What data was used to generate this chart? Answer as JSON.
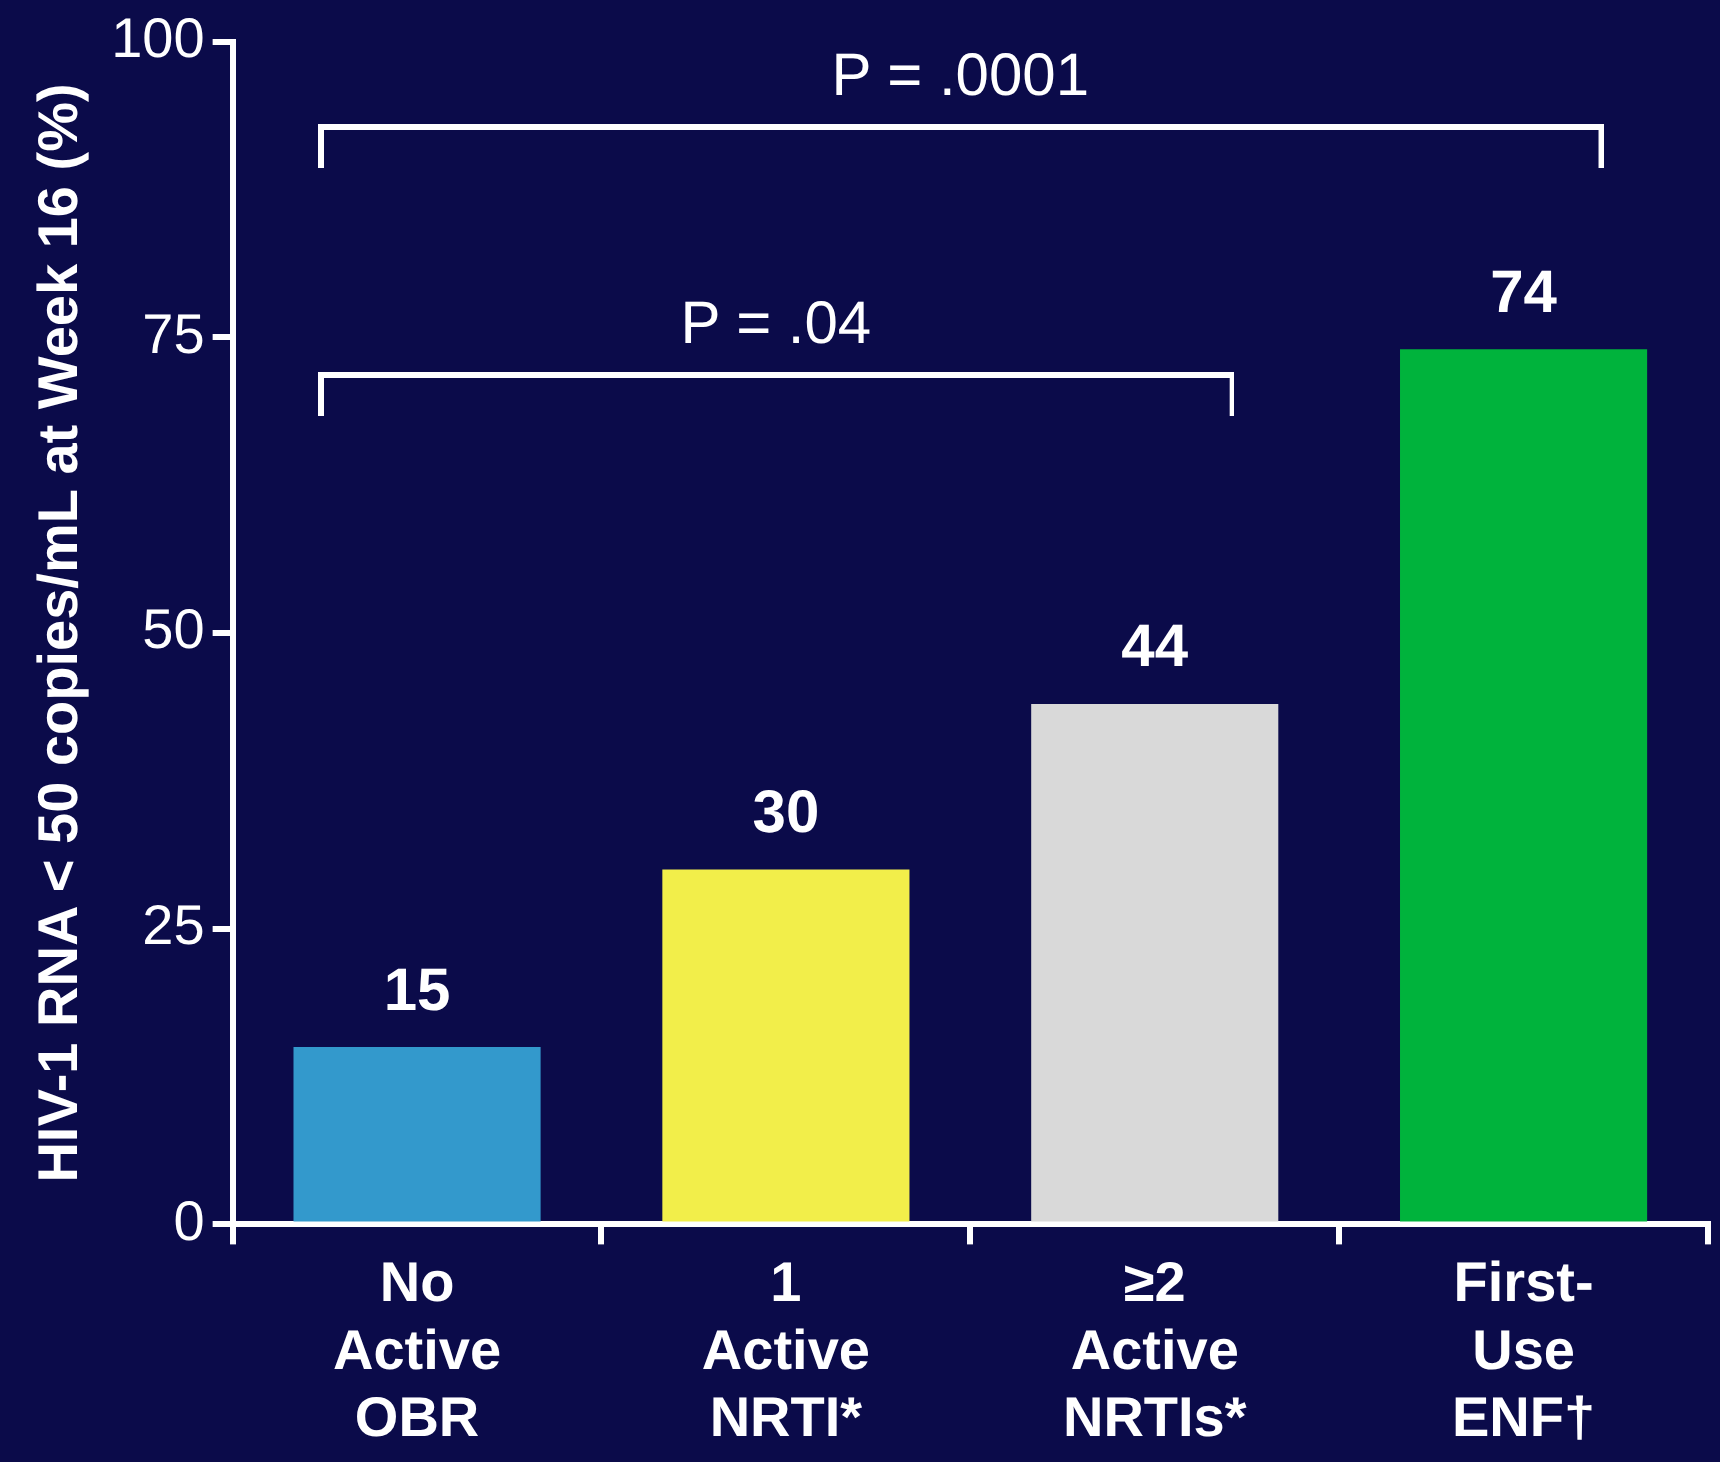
{
  "chart_data": {
    "type": "bar",
    "ylabel": "HIV-1 RNA < 50 copies/mL at Week 16 (%)",
    "categories": [
      "No Active OBR",
      "1 Active NRTI*",
      "≥2 Active NRTIs*",
      "First-Use ENF†"
    ],
    "values": [
      15,
      30,
      44,
      74
    ],
    "colors": [
      "#3399cc",
      "#f2ee4a",
      "#d9d9d9",
      "#00b33c"
    ],
    "ylim": [
      0,
      100
    ],
    "yticks": [
      0,
      25,
      50,
      75,
      100
    ],
    "grid": false,
    "legend": false,
    "data_labels": true,
    "annotations": [
      "P = .04",
      "P = .0001"
    ]
  }
}
